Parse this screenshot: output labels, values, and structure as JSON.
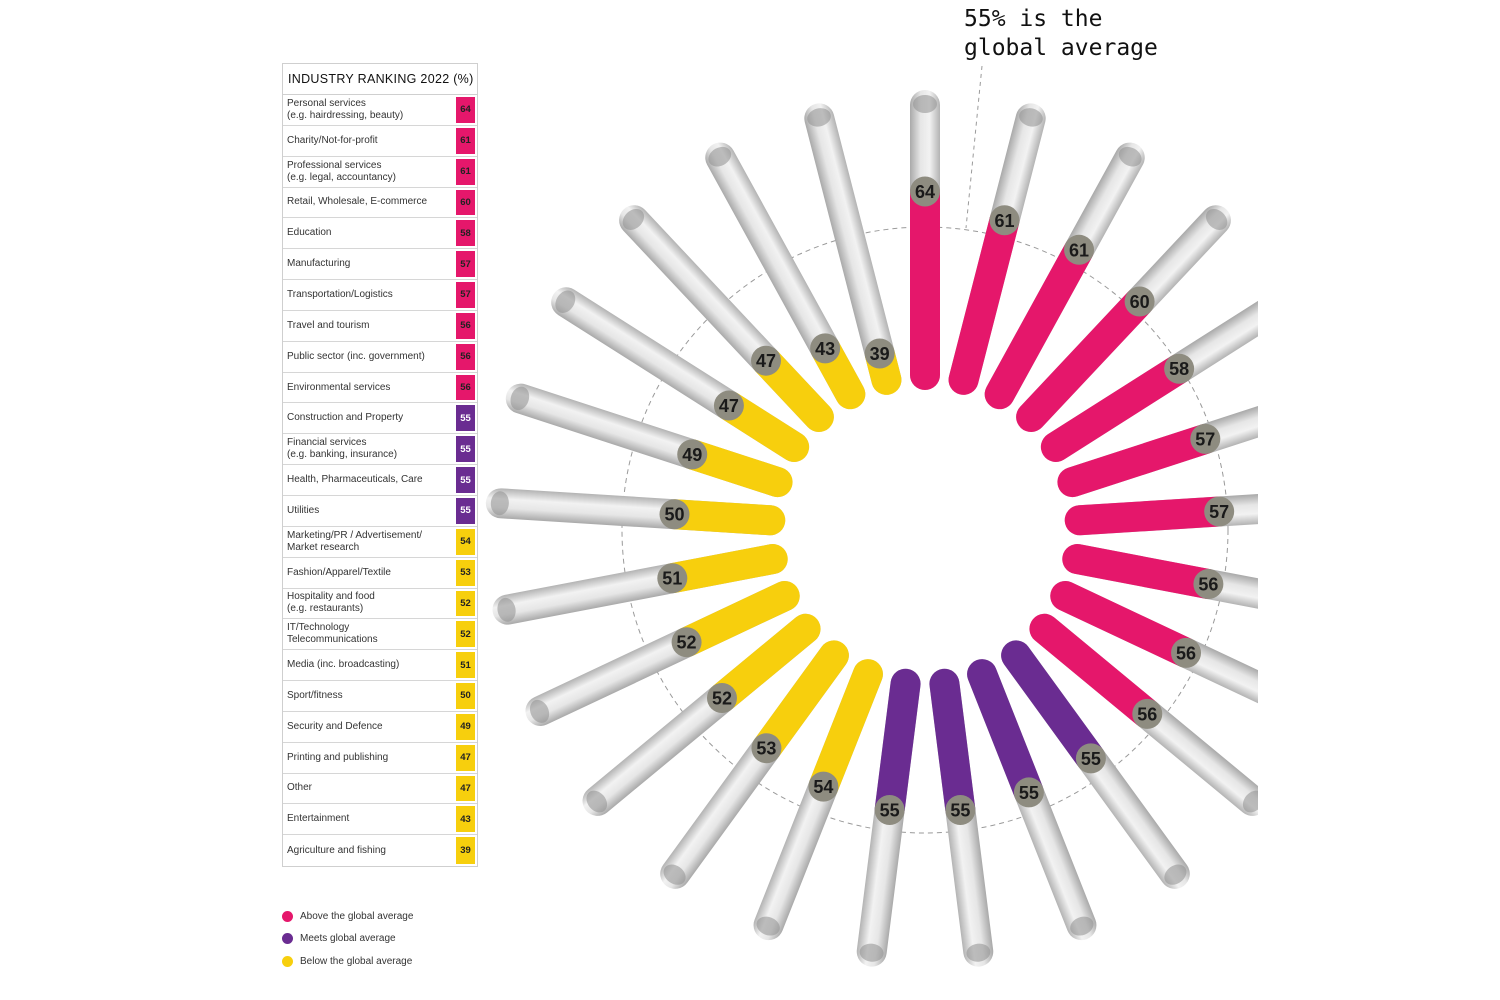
{
  "table": {
    "title": "INDUSTRY RANKING 2022 (%)",
    "rows": [
      {
        "label": "Personal services\n(e.g. hairdressing, beauty)",
        "value": 64
      },
      {
        "label": "Charity/Not-for-profit",
        "value": 61
      },
      {
        "label": "Professional services\n(e.g. legal, accountancy)",
        "value": 61
      },
      {
        "label": "Retail, Wholesale, E-commerce",
        "value": 60
      },
      {
        "label": "Education",
        "value": 58
      },
      {
        "label": "Manufacturing",
        "value": 57
      },
      {
        "label": "Transportation/Logistics",
        "value": 57
      },
      {
        "label": "Travel and tourism",
        "value": 56
      },
      {
        "label": "Public sector (inc. government)",
        "value": 56
      },
      {
        "label": "Environmental services",
        "value": 56
      },
      {
        "label": "Construction and Property",
        "value": 55
      },
      {
        "label": "Financial services\n(e.g. banking, insurance)",
        "value": 55
      },
      {
        "label": "Health, Pharmaceuticals, Care",
        "value": 55
      },
      {
        "label": "Utilities",
        "value": 55
      },
      {
        "label": "Marketing/PR / Advertisement/\nMarket research",
        "value": 54
      },
      {
        "label": "Fashion/Apparel/Textile",
        "value": 53
      },
      {
        "label": "Hospitality and food\n(e.g. restaurants)",
        "value": 52
      },
      {
        "label": "IT/Technology\nTelecommunications",
        "value": 52
      },
      {
        "label": "Media (inc. broadcasting)",
        "value": 51
      },
      {
        "label": "Sport/fitness",
        "value": 50
      },
      {
        "label": "Security and Defence",
        "value": 49
      },
      {
        "label": "Printing and publishing",
        "value": 47
      },
      {
        "label": "Other",
        "value": 47
      },
      {
        "label": "Entertainment",
        "value": 43
      },
      {
        "label": "Agriculture and fishing",
        "value": 39
      }
    ]
  },
  "colors": {
    "above": "#e5176b",
    "meets": "#6a2c91",
    "below": "#f7cf0d",
    "track": "#d5d5d5",
    "badge": "#8e8c80"
  },
  "legend": [
    {
      "label": "Above the global average",
      "category": "above"
    },
    {
      "label": "Meets global average",
      "category": "meets"
    },
    {
      "label": "Below the global average",
      "category": "below"
    }
  ],
  "callout": {
    "line1": "55% is the",
    "line2": "global average"
  },
  "chart_data": {
    "type": "bar",
    "layout": "radial",
    "title": "INDUSTRY RANKING 2022 (%)",
    "reference_value": 55,
    "reference_label": "55% is the global average",
    "categories": [
      "Personal services (e.g. hairdressing, beauty)",
      "Charity/Not-for-profit",
      "Professional services (e.g. legal, accountancy)",
      "Retail, Wholesale, E-commerce",
      "Education",
      "Manufacturing",
      "Transportation/Logistics",
      "Travel and tourism",
      "Public sector (inc. government)",
      "Environmental services",
      "Construction and Property",
      "Financial services (e.g. banking, insurance)",
      "Health, Pharmaceuticals, Care",
      "Utilities",
      "Marketing/PR / Advertisement/ Market research",
      "Fashion/Apparel/Textile",
      "Hospitality and food (e.g. restaurants)",
      "IT/Technology Telecommunications",
      "Media (inc. broadcasting)",
      "Sport/fitness",
      "Security and Defence",
      "Printing and publishing",
      "Other",
      "Entertainment",
      "Agriculture and fishing"
    ],
    "values": [
      64,
      61,
      61,
      60,
      58,
      57,
      57,
      56,
      56,
      56,
      55,
      55,
      55,
      55,
      54,
      53,
      52,
      52,
      51,
      50,
      49,
      47,
      47,
      43,
      39
    ],
    "value_categories": [
      "above",
      "above",
      "above",
      "above",
      "above",
      "above",
      "above",
      "above",
      "above",
      "above",
      "meets",
      "meets",
      "meets",
      "meets",
      "below",
      "below",
      "below",
      "below",
      "below",
      "below",
      "below",
      "below",
      "below",
      "below",
      "below"
    ],
    "grid": false,
    "legend_position": "bottom-left"
  }
}
